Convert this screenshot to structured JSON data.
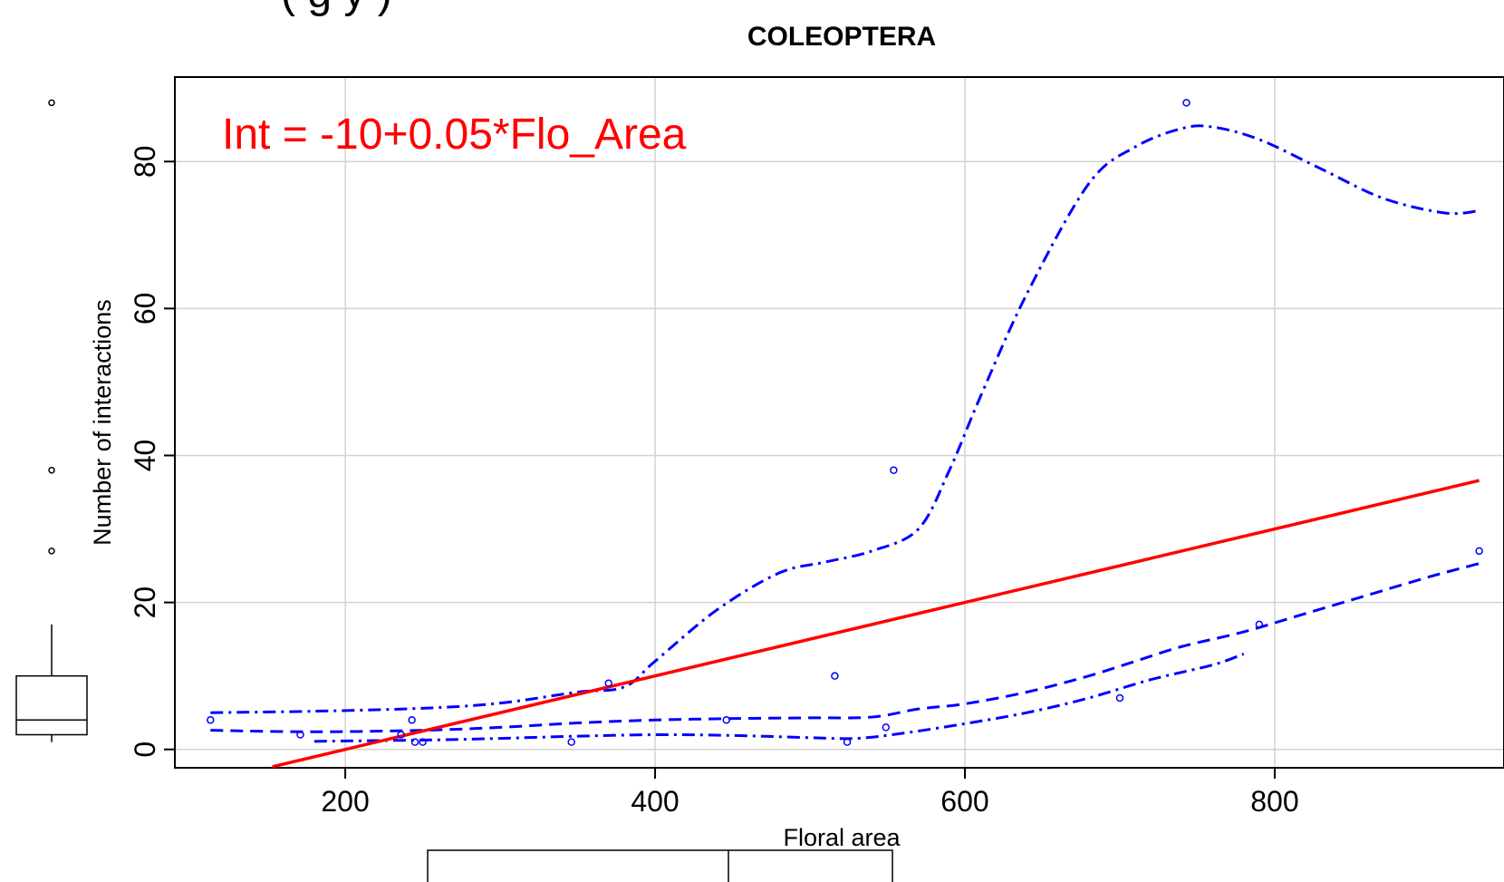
{
  "chart_data": {
    "type": "scatter",
    "title": "COLEOPTERA",
    "xlabel": "Floral area",
    "ylabel": "Number of interactions",
    "xlim": [
      90,
      948
    ],
    "ylim": [
      -2.5,
      91.5
    ],
    "x_ticks": [
      200,
      400,
      600,
      800
    ],
    "y_ticks": [
      0,
      20,
      40,
      60,
      80
    ],
    "grid": true,
    "annotation": "Int = -10+0.05*Flo_Area",
    "header_partial_text": "(   g         y  )",
    "points": [
      [
        113,
        4
      ],
      [
        171,
        2
      ],
      [
        236,
        2
      ],
      [
        243,
        4
      ],
      [
        245,
        1
      ],
      [
        250,
        1
      ],
      [
        346,
        1
      ],
      [
        370,
        9
      ],
      [
        446,
        4
      ],
      [
        516,
        10
      ],
      [
        524,
        1
      ],
      [
        549,
        3
      ],
      [
        554,
        38
      ],
      [
        700,
        7
      ],
      [
        743,
        88
      ],
      [
        790,
        17
      ],
      [
        932,
        27
      ]
    ],
    "regression_line": {
      "intercept": -10,
      "slope": 0.05,
      "x_range": [
        153,
        932
      ],
      "color": "#ff0000"
    },
    "smooth_curves": [
      {
        "name": "upper",
        "color": "#0000ff",
        "x": [
          113,
          180,
          250,
          300,
          350,
          380,
          400,
          440,
          480,
          510,
          540,
          570,
          590,
          610,
          640,
          680,
          710,
          740,
          760,
          790,
          830,
          870,
          910,
          932
        ],
        "y": [
          5,
          5.2,
          5.6,
          6.3,
          7.8,
          8.5,
          12,
          19,
          24,
          25.5,
          27,
          30,
          38,
          48,
          62,
          77,
          82,
          84.5,
          84.7,
          83,
          79,
          75,
          73,
          73.3
        ]
      },
      {
        "name": "middle",
        "color": "#0000ff",
        "x": [
          113,
          180,
          250,
          300,
          350,
          400,
          450,
          500,
          540,
          570,
          600,
          640,
          680,
          710,
          740,
          780,
          820,
          860,
          900,
          932
        ],
        "y": [
          2.6,
          2.4,
          2.6,
          3,
          3.6,
          4,
          4.2,
          4.3,
          4.4,
          5.5,
          6.2,
          7.8,
          10,
          12,
          14,
          16,
          18.5,
          21,
          23.5,
          25.3
        ]
      },
      {
        "name": "lower",
        "color": "#0000ff",
        "x": [
          180,
          220,
          260,
          300,
          350,
          400,
          450,
          500,
          530,
          560,
          600,
          640,
          680,
          720,
          760,
          780
        ],
        "y": [
          1.1,
          1.2,
          1.3,
          1.5,
          1.8,
          2.0,
          1.9,
          1.6,
          1.5,
          2.2,
          3.5,
          5,
          7,
          9.5,
          11.5,
          13
        ]
      }
    ],
    "boxplot": {
      "min": 1,
      "q1": 2,
      "median": 4,
      "q3": 10,
      "max": 17,
      "outliers": [
        27,
        38,
        88
      ]
    }
  }
}
